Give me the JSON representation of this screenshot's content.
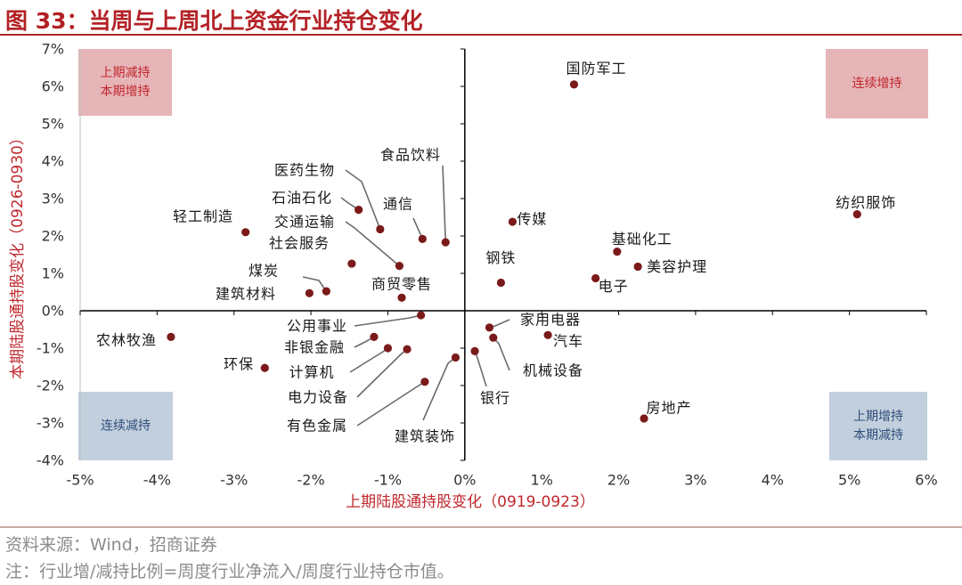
{
  "title": "图 33：当周与上周北上资金行业持仓变化",
  "source": "资料来源：Wind，招商证券",
  "note": "注：行业增/减持比例=周度行业净流入/周度行业持仓市值。",
  "colors": {
    "title": "#b32126",
    "point": "#7b1a1a",
    "axis_label": "#c0282d",
    "red_box": "#e6b5b8",
    "blue_box": "#c2cfdd"
  },
  "chart_data": {
    "type": "scatter",
    "xlabel": "上期陆股通持股变化（0919-0923）",
    "ylabel": "本期陆股通持股变化（0926-0930）",
    "xlim": [
      -5,
      6
    ],
    "ylim": [
      -4,
      7
    ],
    "x_ticks": [
      "-5%",
      "-4%",
      "-3%",
      "-2%",
      "-1%",
      "0%",
      "1%",
      "2%",
      "3%",
      "4%",
      "5%",
      "6%"
    ],
    "y_ticks": [
      "-4%",
      "-3%",
      "-2%",
      "-1%",
      "0%",
      "1%",
      "2%",
      "3%",
      "4%",
      "5%",
      "6%",
      "7%"
    ],
    "quadrants": {
      "top_left": [
        "上期减持",
        "本期增持"
      ],
      "top_right": [
        "连续增持"
      ],
      "bottom_left": [
        "连续减持"
      ],
      "bottom_right": [
        "上期增持",
        "本期减持"
      ]
    },
    "points": [
      {
        "name": "国防军工",
        "x": 1.42,
        "y": 6.05
      },
      {
        "name": "纺织服饰",
        "x": 5.1,
        "y": 2.58
      },
      {
        "name": "传媒",
        "x": 0.62,
        "y": 2.38
      },
      {
        "name": "基础化工",
        "x": 1.98,
        "y": 1.58
      },
      {
        "name": "美容护理",
        "x": 2.25,
        "y": 1.18
      },
      {
        "name": "电子",
        "x": 1.7,
        "y": 0.87
      },
      {
        "name": "钢铁",
        "x": 0.47,
        "y": 0.75
      },
      {
        "name": "食品饮料",
        "x": -0.25,
        "y": 1.83
      },
      {
        "name": "医药生物",
        "x": -1.1,
        "y": 2.18
      },
      {
        "name": "石油石化",
        "x": -1.38,
        "y": 2.7
      },
      {
        "name": "通信",
        "x": -0.55,
        "y": 1.92
      },
      {
        "name": "轻工制造",
        "x": -2.85,
        "y": 2.1
      },
      {
        "name": "交通运输",
        "x": -0.85,
        "y": 1.2
      },
      {
        "name": "社会服务",
        "x": -1.47,
        "y": 1.26
      },
      {
        "name": "煤炭",
        "x": -1.8,
        "y": 0.52
      },
      {
        "name": "建筑材料",
        "x": -2.02,
        "y": 0.47
      },
      {
        "name": "商贸零售",
        "x": -0.82,
        "y": 0.35
      },
      {
        "name": "公用事业",
        "x": -0.57,
        "y": -0.12
      },
      {
        "name": "非银金融",
        "x": -1.18,
        "y": -0.7
      },
      {
        "name": "计算机",
        "x": -1.0,
        "y": -1.0
      },
      {
        "name": "电力设备",
        "x": -0.75,
        "y": -1.03
      },
      {
        "name": "有色金属",
        "x": -0.52,
        "y": -1.9
      },
      {
        "name": "建筑装饰",
        "x": -0.12,
        "y": -1.25
      },
      {
        "name": "农林牧渔",
        "x": -3.82,
        "y": -0.7
      },
      {
        "name": "环保",
        "x": -2.6,
        "y": -1.53
      },
      {
        "name": "家用电器",
        "x": 0.32,
        "y": -0.45
      },
      {
        "name": "汽车",
        "x": 1.08,
        "y": -0.65
      },
      {
        "name": "机械设备",
        "x": 0.37,
        "y": -0.72
      },
      {
        "name": "银行",
        "x": 0.13,
        "y": -1.08
      },
      {
        "name": "房地产",
        "x": 2.33,
        "y": -2.88
      }
    ]
  }
}
